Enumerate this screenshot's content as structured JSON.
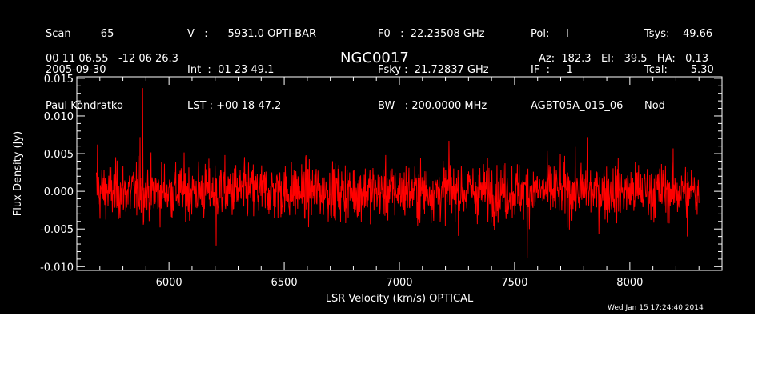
{
  "header": {
    "col1": [
      "Scan         65",
      "2005-09-30",
      "Paul Kondratko"
    ],
    "col2": [
      "V   :      5931.0 OPTI-BAR",
      "Int  :  01 23 49.1",
      "LST : +00 18 47.2"
    ],
    "col3": [
      "F0   :  22.23508 GHz",
      "Fsky :  21.72837 GHz",
      "BW   : 200.0000 MHz"
    ],
    "col4": [
      "Pol:     I",
      "IF  :     1",
      "AGBT05A_015_06"
    ],
    "col5": [
      "Tsys:    49.66",
      "Tcal:       5.30",
      "Nod"
    ],
    "coords": "00 11 06.55   -12 06 26.3",
    "source": "NGC0017",
    "azel": "Az:  182.3   El:   39.5   HA:   0.13",
    "timestamp": "Wed Jan 15 17:24:40 2014"
  },
  "colors": {
    "background": "#000000",
    "trace": "#ff0000",
    "axes": "#ffffff"
  },
  "chart_data": {
    "type": "line",
    "title": "NGC0017",
    "xlabel": "LSR Velocity (km/s) OPTICAL",
    "ylabel": "Flux Density (Jy)",
    "xlim": [
      5600,
      8400
    ],
    "ylim": [
      -0.0105,
      0.0152
    ],
    "xticks": [
      6000,
      6500,
      7000,
      7500,
      8000
    ],
    "xtick_labels": [
      "6000",
      "6500",
      "7000",
      "7500",
      "8000"
    ],
    "yticks": [
      -0.01,
      -0.005,
      0.0,
      0.005,
      0.01,
      0.015
    ],
    "ytick_labels": [
      "-0.010",
      "-0.005",
      "0.000",
      "0.005",
      "0.010",
      "0.015"
    ],
    "series": [
      {
        "color": "#ff0000",
        "x_start": 5685,
        "x_end": 8300,
        "noise_rms": 0.0022,
        "features": [
          {
            "x": 5885,
            "y": 0.0137
          },
          {
            "x": 5875,
            "y": 0.0072
          },
          {
            "x": 5690,
            "y": 0.0062
          },
          {
            "x": 7555,
            "y": -0.0088
          },
          {
            "x": 8250,
            "y": -0.006
          },
          {
            "x": 6205,
            "y": -0.0072
          },
          {
            "x": 7215,
            "y": 0.0067
          },
          {
            "x": 7815,
            "y": 0.0072
          }
        ]
      }
    ],
    "grid": false
  }
}
